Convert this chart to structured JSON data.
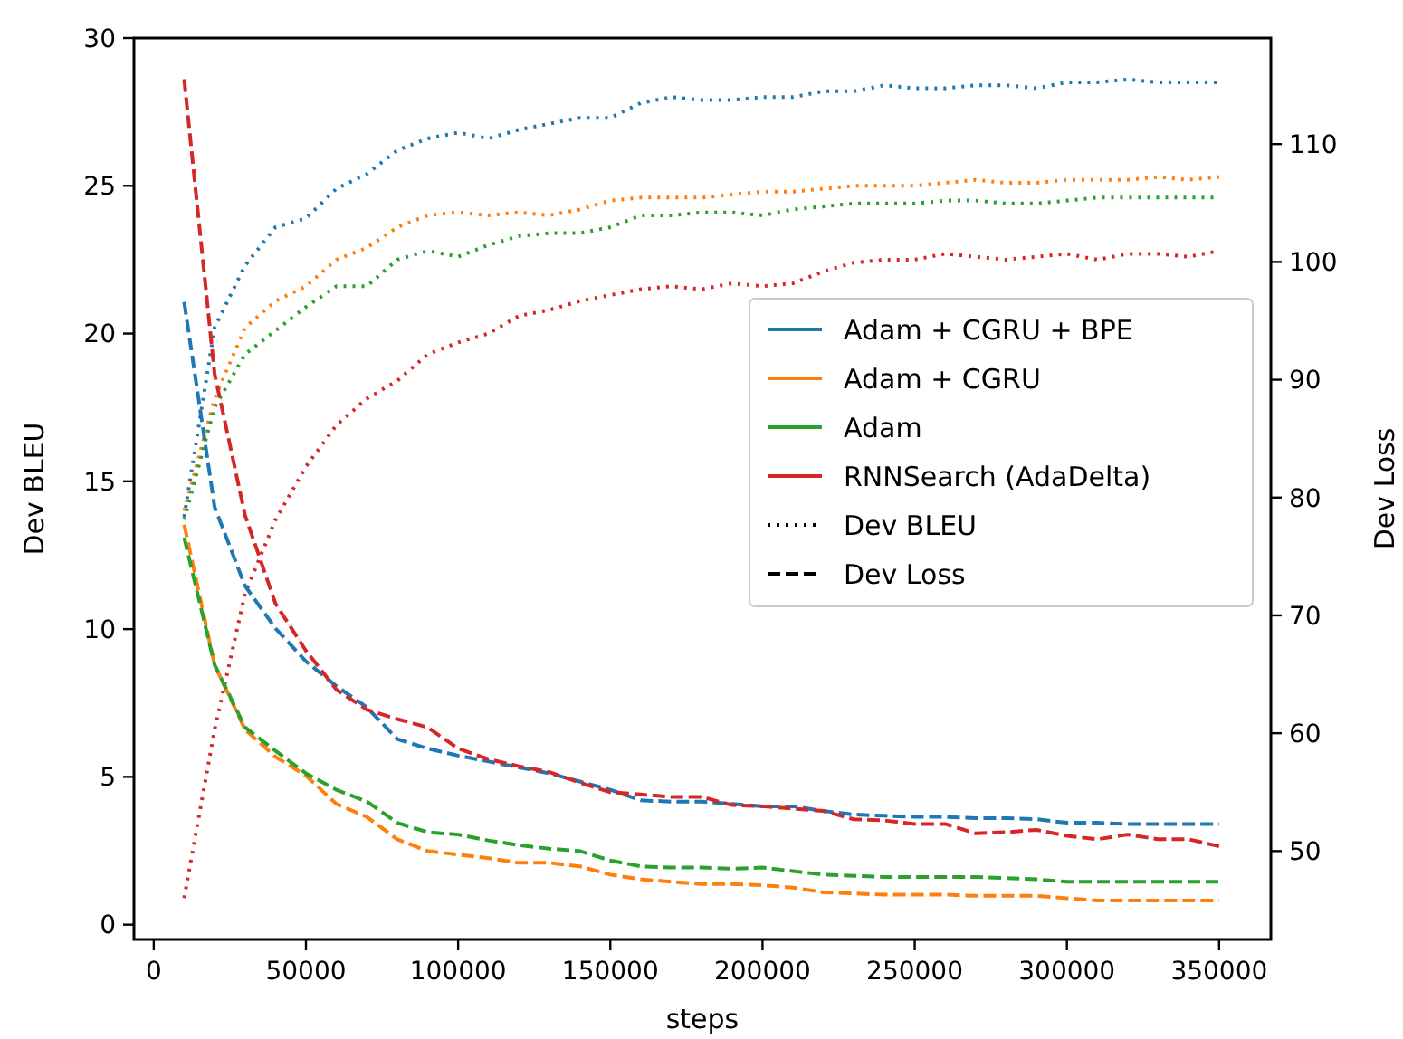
{
  "chart_data": {
    "type": "line",
    "xlabel": "steps",
    "ylabel": "Dev BLEU",
    "y2label": "Dev Loss",
    "x": [
      10000,
      20000,
      30000,
      40000,
      50000,
      60000,
      70000,
      80000,
      90000,
      100000,
      110000,
      120000,
      130000,
      140000,
      150000,
      160000,
      170000,
      180000,
      190000,
      200000,
      210000,
      220000,
      230000,
      240000,
      250000,
      260000,
      270000,
      280000,
      290000,
      300000,
      310000,
      320000,
      330000,
      340000,
      350000
    ],
    "xlim": [
      -6500,
      367000
    ],
    "xticks": [
      0,
      50000,
      100000,
      150000,
      200000,
      250000,
      300000,
      350000
    ],
    "ylim": [
      -0.5,
      30
    ],
    "yticks": [
      0,
      5,
      10,
      15,
      20,
      25,
      30
    ],
    "y2lim": [
      42.5,
      119
    ],
    "y2ticks": [
      50,
      60,
      70,
      80,
      90,
      100,
      110
    ],
    "legend": "right",
    "grid": false,
    "annotations": [
      "Dev BLEU",
      "Dev Loss"
    ],
    "series": [
      {
        "name": "Adam + CGRU + BPE",
        "color": "#1f77b4",
        "line_style": "dotted",
        "values": [
          13.8,
          20.2,
          22.3,
          23.6,
          23.9,
          24.9,
          25.4,
          26.2,
          26.6,
          26.8,
          26.6,
          26.9,
          27.1,
          27.3,
          27.3,
          27.8,
          28.0,
          27.9,
          27.9,
          28.0,
          28.0,
          28.2,
          28.2,
          28.4,
          28.3,
          28.3,
          28.4,
          28.4,
          28.3,
          28.5,
          28.5,
          28.6,
          28.5,
          28.5,
          28.5
        ]
      },
      {
        "name": "Adam + CGRU",
        "color": "#ff7f0e",
        "line_style": "dotted",
        "values": [
          14.0,
          17.8,
          20.2,
          21.1,
          21.6,
          22.5,
          22.9,
          23.6,
          24.0,
          24.1,
          24.0,
          24.1,
          24.0,
          24.2,
          24.5,
          24.6,
          24.6,
          24.6,
          24.7,
          24.8,
          24.8,
          24.9,
          25.0,
          25.0,
          25.0,
          25.1,
          25.2,
          25.1,
          25.1,
          25.2,
          25.2,
          25.2,
          25.3,
          25.2,
          25.3
        ]
      },
      {
        "name": "Adam",
        "color": "#2ca02c",
        "line_style": "dotted",
        "values": [
          13.7,
          17.5,
          19.3,
          20.1,
          20.9,
          21.6,
          21.6,
          22.5,
          22.8,
          22.6,
          23.0,
          23.3,
          23.4,
          23.4,
          23.6,
          24.0,
          24.0,
          24.1,
          24.1,
          24.0,
          24.2,
          24.3,
          24.4,
          24.4,
          24.4,
          24.5,
          24.5,
          24.4,
          24.4,
          24.5,
          24.6,
          24.6,
          24.6,
          24.6,
          24.6
        ]
      },
      {
        "name": "RNNSearch (AdaDelta)",
        "color": "#d62728",
        "line_style": "dotted",
        "values": [
          0.9,
          6.6,
          11.2,
          13.7,
          15.5,
          16.9,
          17.8,
          18.4,
          19.3,
          19.7,
          20.0,
          20.6,
          20.8,
          21.1,
          21.3,
          21.5,
          21.6,
          21.5,
          21.7,
          21.6,
          21.7,
          22.1,
          22.4,
          22.5,
          22.5,
          22.7,
          22.6,
          22.5,
          22.6,
          22.7,
          22.5,
          22.7,
          22.7,
          22.6,
          22.8
        ]
      },
      {
        "color": "#1f77b4",
        "line_style": "dashed",
        "axis": "y2",
        "values": [
          96.6,
          79.2,
          72.5,
          68.9,
          66.1,
          64.0,
          62.2,
          59.5,
          58.7,
          58.1,
          57.6,
          57.1,
          56.6,
          55.9,
          55.2,
          54.3,
          54.2,
          54.2,
          54.0,
          53.8,
          53.8,
          53.4,
          53.1,
          53.0,
          52.9,
          52.9,
          52.8,
          52.8,
          52.7,
          52.4,
          52.4,
          52.3,
          52.3,
          52.3,
          52.3
        ]
      },
      {
        "color": "#ff7f0e",
        "line_style": "dashed",
        "axis": "y2",
        "values": [
          77.7,
          65.8,
          60.3,
          58.0,
          56.4,
          54.0,
          52.9,
          51.0,
          50.0,
          49.7,
          49.4,
          49.0,
          49.0,
          48.7,
          48.0,
          47.6,
          47.4,
          47.2,
          47.2,
          47.1,
          46.9,
          46.5,
          46.4,
          46.3,
          46.3,
          46.3,
          46.2,
          46.2,
          46.2,
          46.0,
          45.8,
          45.8,
          45.8,
          45.8,
          45.8
        ]
      },
      {
        "color": "#2ca02c",
        "line_style": "dashed",
        "axis": "y2",
        "values": [
          76.6,
          65.8,
          60.5,
          58.5,
          56.6,
          55.2,
          54.2,
          52.4,
          51.6,
          51.4,
          50.9,
          50.5,
          50.2,
          50.0,
          49.2,
          48.7,
          48.6,
          48.6,
          48.5,
          48.6,
          48.3,
          48.0,
          47.9,
          47.8,
          47.8,
          47.8,
          47.8,
          47.7,
          47.6,
          47.4,
          47.4,
          47.4,
          47.4,
          47.4,
          47.4
        ]
      },
      {
        "color": "#d62728",
        "line_style": "dashed",
        "axis": "y2",
        "values": [
          115.5,
          90.5,
          78.5,
          71.0,
          67.0,
          63.7,
          62.0,
          61.2,
          60.5,
          58.7,
          57.8,
          57.2,
          56.7,
          55.8,
          55.0,
          54.8,
          54.6,
          54.6,
          53.9,
          53.8,
          53.6,
          53.4,
          52.7,
          52.6,
          52.3,
          52.3,
          51.5,
          51.6,
          51.8,
          51.3,
          51.0,
          51.4,
          51.0,
          51.0,
          50.4
        ]
      }
    ]
  }
}
